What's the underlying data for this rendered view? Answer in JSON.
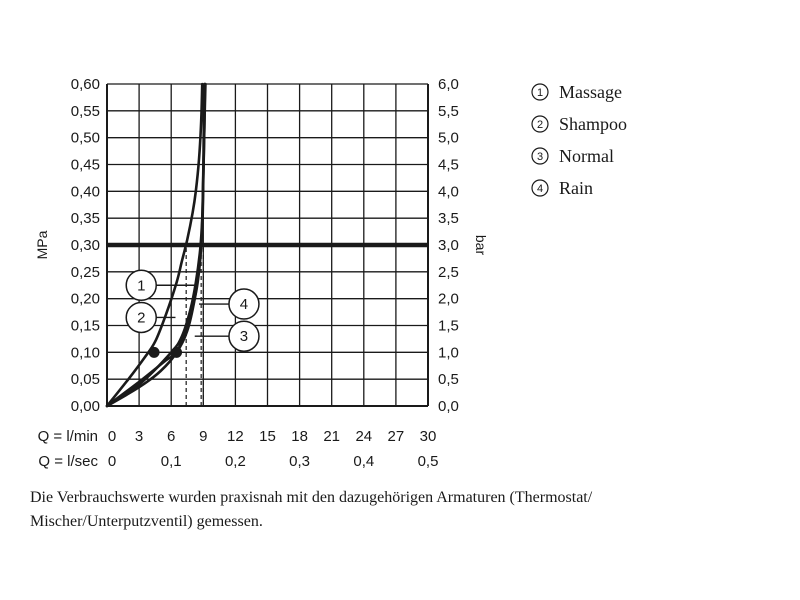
{
  "chart_data": {
    "type": "line",
    "left_axis_label": "MPa",
    "right_axis_label": "bar",
    "y_ticks_left": [
      "0,00",
      "0,05",
      "0,10",
      "0,15",
      "0,20",
      "0,25",
      "0,30",
      "0,35",
      "0,40",
      "0,45",
      "0,50",
      "0,55",
      "0,60"
    ],
    "y_ticks_right": [
      "0,0",
      "0,5",
      "1,0",
      "1,5",
      "2,0",
      "2,5",
      "3,0",
      "3,5",
      "4,0",
      "4,5",
      "5,0",
      "5,5",
      "6,0"
    ],
    "ylim": [
      0,
      0.6
    ],
    "xlim": [
      0,
      30
    ],
    "x_row1_label": "Q = l/min",
    "x_ticks_lmin": [
      "0",
      "3",
      "6",
      "9",
      "12",
      "15",
      "18",
      "21",
      "24",
      "27",
      "30"
    ],
    "x_row2_label": "Q = l/sec",
    "x_ticks_lsec": [
      "0",
      "0,1",
      "0,2",
      "0,3",
      "0,4",
      "0,5"
    ],
    "reference_line": {
      "y": 0.3
    },
    "series": [
      {
        "name": "Massage",
        "marker": "1",
        "x": [
          0,
          2.0,
          3.5,
          4.5,
          5.5,
          6.5,
          7.0,
          7.5,
          8.0,
          8.3,
          8.6,
          8.8,
          8.9
        ],
        "y": [
          0,
          0.05,
          0.09,
          0.12,
          0.17,
          0.23,
          0.27,
          0.31,
          0.36,
          0.4,
          0.46,
          0.53,
          0.6
        ]
      },
      {
        "name": "Shampoo",
        "marker": "2",
        "x": [
          0,
          3.0,
          6.0,
          7.0,
          7.8,
          8.3,
          8.7,
          8.9,
          9.0,
          9.05,
          9.1
        ],
        "y": [
          0,
          0.04,
          0.1,
          0.13,
          0.18,
          0.23,
          0.29,
          0.35,
          0.44,
          0.53,
          0.6
        ]
      },
      {
        "name": "Normal",
        "marker": "3",
        "x": [
          0,
          3.0,
          5.5,
          6.5,
          7.5,
          8.2,
          8.6,
          8.9,
          9.0,
          9.1,
          9.2
        ],
        "y": [
          0,
          0.045,
          0.085,
          0.1,
          0.14,
          0.2,
          0.26,
          0.33,
          0.42,
          0.52,
          0.6
        ]
      },
      {
        "name": "Rain",
        "marker": "4",
        "x": [
          0,
          3.0,
          5.0,
          6.5,
          7.5,
          8.3,
          8.7,
          8.9,
          9.0,
          9.1,
          9.15
        ],
        "y": [
          0,
          0.035,
          0.065,
          0.1,
          0.15,
          0.21,
          0.27,
          0.34,
          0.43,
          0.52,
          0.6
        ]
      }
    ],
    "operating_points": [
      {
        "x": 4.4,
        "y": 0.1
      },
      {
        "x": 6.5,
        "y": 0.1
      }
    ],
    "dashed_guides": [
      {
        "x": 7.4,
        "from_y": 0,
        "to_y": 0.3
      },
      {
        "x": 8.8,
        "from_y": 0,
        "to_y": 0.3
      },
      {
        "x": 9.0,
        "from_y": 0,
        "to_y": 0.3
      }
    ],
    "callouts": [
      {
        "marker": "1",
        "target_x": 8.4,
        "target_y": 0.225,
        "label_x": 3.2,
        "label_y": 0.225
      },
      {
        "marker": "2",
        "target_x": 6.4,
        "target_y": 0.165,
        "label_x": 3.2,
        "label_y": 0.165
      },
      {
        "marker": "4",
        "target_x": 8.6,
        "target_y": 0.19,
        "label_x": 12.8,
        "label_y": 0.19
      },
      {
        "marker": "3",
        "target_x": 8.2,
        "target_y": 0.13,
        "label_x": 12.8,
        "label_y": 0.13
      }
    ],
    "legend": [
      {
        "marker": "1",
        "label": "Massage"
      },
      {
        "marker": "2",
        "label": "Shampoo"
      },
      {
        "marker": "3",
        "label": "Normal"
      },
      {
        "marker": "4",
        "label": "Rain"
      }
    ],
    "legend_position": "right",
    "grid": true,
    "colors": {
      "line": "#1a1a1a",
      "grid": "#1a1a1a",
      "background": "#ffffff"
    }
  },
  "note": "Die Verbrauchswerte wurden praxisnah mit den dazugehörigen Armaturen (Thermostat/ Mischer/Unterputzventil) gemessen."
}
